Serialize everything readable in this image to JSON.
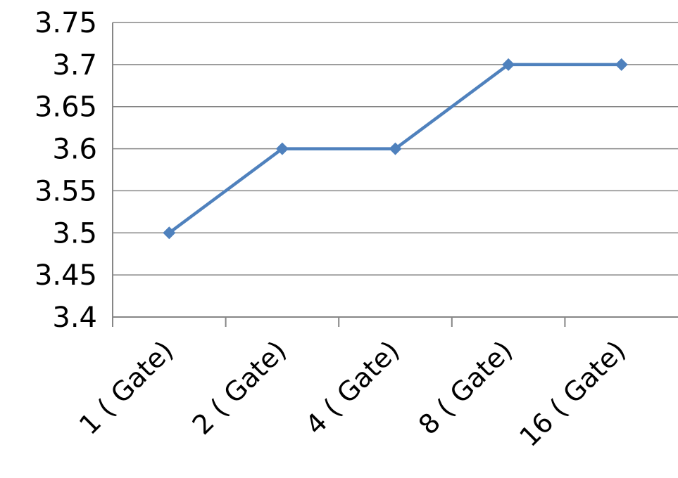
{
  "chart_data": {
    "type": "line",
    "categories": [
      "1 ( Gate)",
      "2 ( Gate)",
      "4 ( Gate)",
      "8 ( Gate)",
      "16 ( Gate)"
    ],
    "series": [
      {
        "values": [
          3.5,
          3.6,
          3.6,
          3.7,
          3.7
        ],
        "color": "#4F81BD",
        "marker": "diamond"
      }
    ],
    "ylim": [
      3.4,
      3.75
    ],
    "yticks": [
      3.4,
      3.45,
      3.5,
      3.55,
      3.6,
      3.65,
      3.7,
      3.75
    ],
    "ytick_labels": [
      "3.4",
      "3.45",
      "3.5",
      "3.55",
      "3.6",
      "3.65",
      "3.7",
      "3.75"
    ],
    "grid": true,
    "legend": "none",
    "title": "",
    "xlabel": "",
    "ylabel": ""
  }
}
